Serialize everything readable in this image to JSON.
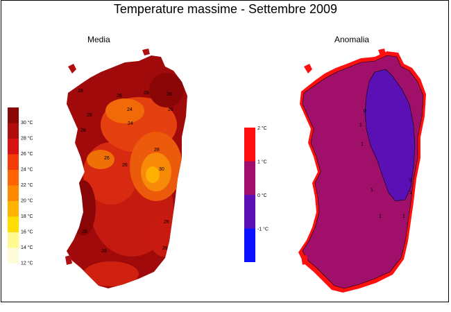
{
  "title": "Temperature massime - Settembre 2009",
  "panels": {
    "media": {
      "label": "Media"
    },
    "anomalia": {
      "label": "Anomalia"
    }
  },
  "legend_media": {
    "colors": [
      "#fdfcd8",
      "#fffa90",
      "#ffde00",
      "#ffb400",
      "#ff8a00",
      "#ff6400",
      "#f23c0a",
      "#d81212",
      "#b00c0c",
      "#8a0606"
    ],
    "labels": [
      "12 °C",
      "14 °C",
      "16 °C",
      "18 °C",
      "20 °C",
      "22 °C",
      "24 °C",
      "26 °C",
      "28 °C",
      "30 °C"
    ]
  },
  "legend_anomalia": {
    "colors": [
      "#0b10ff",
      "#5a10b4",
      "#a0106a",
      "#ff1010"
    ],
    "labels": [
      "-1 °C",
      "0 °C",
      "1 °C",
      "2 °C"
    ]
  },
  "map_media": {
    "stations": [
      "28",
      "26",
      "28",
      "26",
      "26",
      "24",
      "26",
      "24",
      "28",
      "30",
      "26",
      "26",
      "28",
      "28",
      "28",
      "26",
      "26"
    ]
  },
  "map_anomalia": {
    "stations": [
      "0",
      "1",
      "1",
      "1",
      "1",
      "1",
      "1",
      "0"
    ]
  }
}
